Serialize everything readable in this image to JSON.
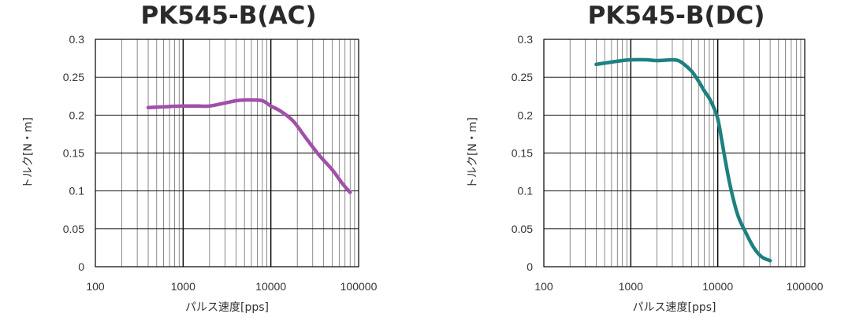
{
  "chart_data": [
    {
      "type": "line",
      "title": "PK545-B(AC)",
      "xlabel": "パルス速度[pps]",
      "ylabel": "トルク[N・m]",
      "x_scale": "log",
      "xlim": [
        100,
        100000
      ],
      "ylim": [
        0,
        0.3
      ],
      "grid": true,
      "x_ticks": [
        "100",
        "1000",
        "10000",
        "100000"
      ],
      "y_ticks": [
        "0",
        "0.05",
        "0.1",
        "0.15",
        "0.2",
        "0.25",
        "0.3"
      ],
      "series": [
        {
          "color": "#a050a8",
          "x": [
            400,
            600,
            1000,
            1500,
            2000,
            3000,
            4000,
            5000,
            6000,
            8000,
            10000,
            13000,
            18000,
            25000,
            35000,
            50000,
            65000,
            80000
          ],
          "y": [
            0.21,
            0.211,
            0.212,
            0.212,
            0.212,
            0.216,
            0.219,
            0.22,
            0.22,
            0.219,
            0.212,
            0.205,
            0.192,
            0.17,
            0.148,
            0.128,
            0.11,
            0.098
          ]
        }
      ]
    },
    {
      "type": "line",
      "title": "PK545-B(DC)",
      "xlabel": "パルス速度[pps]",
      "ylabel": "トルク[N・m]",
      "x_scale": "log",
      "xlim": [
        100,
        100000
      ],
      "ylim": [
        0,
        0.3
      ],
      "grid": true,
      "x_ticks": [
        "100",
        "1000",
        "10000",
        "100000"
      ],
      "y_ticks": [
        "0",
        "0.05",
        "0.1",
        "0.15",
        "0.2",
        "0.25",
        "0.3"
      ],
      "series": [
        {
          "color": "#1e8080",
          "x": [
            400,
            600,
            800,
            1000,
            1500,
            2000,
            3000,
            3500,
            4000,
            5000,
            6000,
            7000,
            8000,
            9000,
            10000,
            11000,
            12000,
            14000,
            17000,
            21000,
            26000,
            32000,
            40000
          ],
          "y": [
            0.267,
            0.27,
            0.272,
            0.273,
            0.273,
            0.272,
            0.273,
            0.272,
            0.268,
            0.258,
            0.245,
            0.232,
            0.222,
            0.21,
            0.195,
            0.17,
            0.145,
            0.105,
            0.068,
            0.045,
            0.025,
            0.013,
            0.008
          ]
        }
      ]
    }
  ]
}
